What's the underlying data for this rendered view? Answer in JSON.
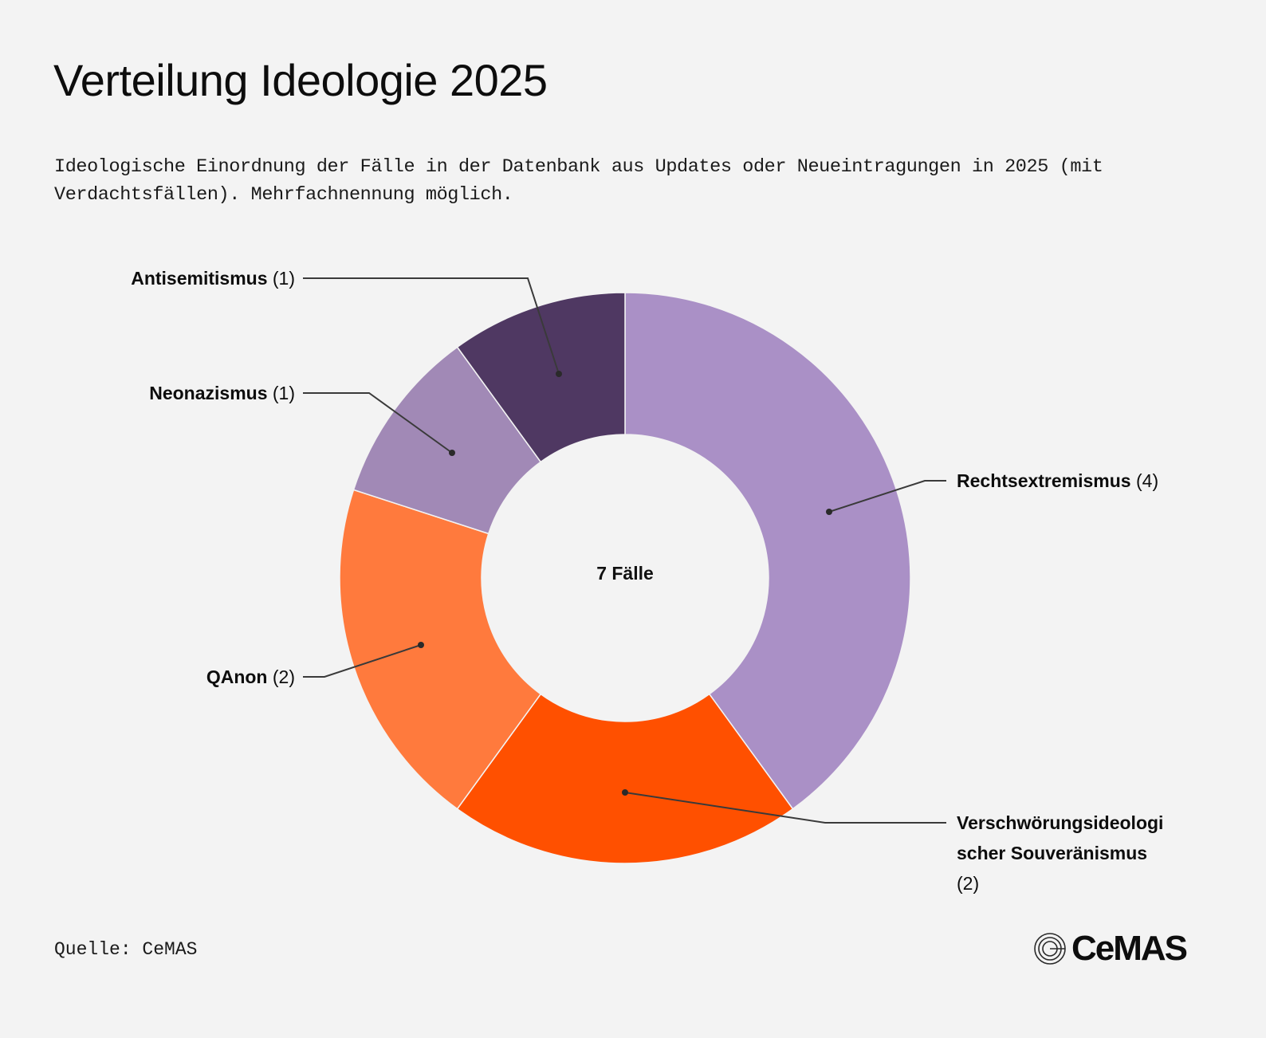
{
  "header": {
    "title": "Verteilung Ideologie 2025",
    "subtitle": "Ideologische Einordnung der Fälle in der Datenbank aus Updates oder Neueintragungen in 2025 (mit Verdachtsfällen). Mehrfachnennung möglich."
  },
  "center": {
    "label": "7 Fälle"
  },
  "labels": {
    "rechts": {
      "name": "Rechtsextremismus",
      "count": "(4)"
    },
    "verschw": {
      "name_line1": "Verschwörungsideologi",
      "name_line2": "scher Souveränismus",
      "count": "(2)"
    },
    "qanon": {
      "name": "QAnon",
      "count": "(2)"
    },
    "neonazi": {
      "name": "Neonazismus",
      "count": "(1)"
    },
    "antisem": {
      "name": "Antisemitismus",
      "count": "(1)"
    }
  },
  "footer": {
    "source": "Quelle: CeMAS",
    "logo_text": "CeMAS"
  },
  "colors": {
    "background": "#f3f3f3",
    "rechtsextremismus": "#aa90c6",
    "verschwoerung": "#ff5000",
    "qanon": "#ff7a3d",
    "neonazismus": "#a189b6",
    "antisemitismus": "#4f3862"
  },
  "chart_data": {
    "type": "pie",
    "variant": "donut",
    "title": "Verteilung Ideologie 2025",
    "subtitle": "Ideologische Einordnung der Fälle in der Datenbank aus Updates oder Neueintragungen in 2025 (mit Verdachtsfällen). Mehrfachnennung möglich.",
    "center_label": "7 Fälle",
    "categories": [
      "Rechtsextremismus",
      "Verschwörungsideologischer Souveränismus",
      "QAnon",
      "Neonazismus",
      "Antisemitismus"
    ],
    "values": [
      4,
      2,
      2,
      1,
      1
    ],
    "colors": [
      "#aa90c6",
      "#ff5000",
      "#ff7a3d",
      "#a189b6",
      "#4f3862"
    ],
    "start_angle": "12 o'clock, clockwise",
    "source": "Quelle: CeMAS"
  }
}
